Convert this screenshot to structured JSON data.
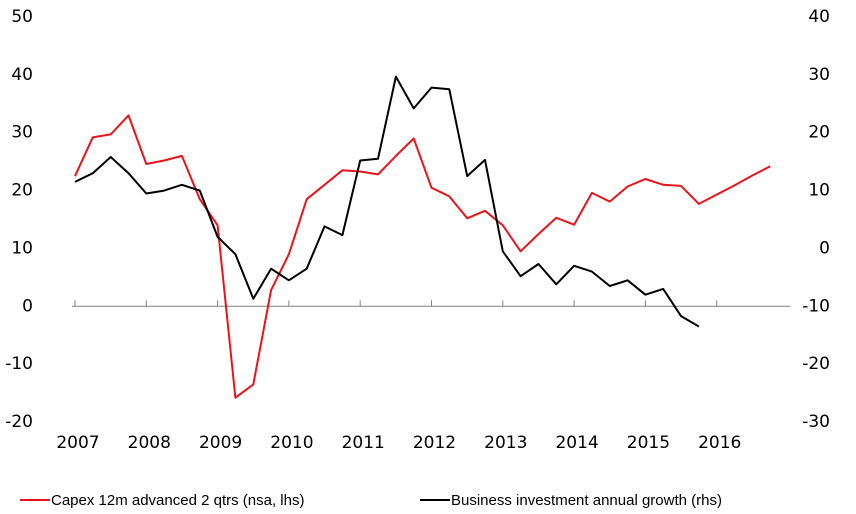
{
  "chart_data": {
    "type": "line",
    "x": [
      2007,
      2007.25,
      2007.5,
      2007.75,
      2008,
      2008.25,
      2008.5,
      2008.75,
      2009,
      2009.25,
      2009.5,
      2009.75,
      2010,
      2010.25,
      2010.5,
      2010.75,
      2011,
      2011.25,
      2011.5,
      2011.75,
      2012,
      2012.25,
      2012.5,
      2012.75,
      2013,
      2013.25,
      2013.5,
      2013.75,
      2014,
      2014.25,
      2014.5,
      2014.75,
      2015,
      2015.25,
      2015.5,
      2015.75,
      2016,
      2016.25,
      2016.5,
      2016.75
    ],
    "series": [
      {
        "name": "Capex 12m advanced 2 qtrs (nsa, lhs)",
        "color": "#e8141b",
        "axis": "y",
        "values": [
          22.5,
          29.2,
          29.7,
          33,
          24.6,
          25.2,
          26,
          18.5,
          14,
          -15.8,
          -13.5,
          2.8,
          9,
          18.5,
          21,
          23.5,
          23.3,
          22.8,
          26,
          29,
          20.5,
          19,
          15.2,
          16.5,
          14,
          9.5,
          12.5,
          15.3,
          14.1,
          19.6,
          18.1,
          20.7,
          22,
          21,
          20.8,
          17.7,
          19.3,
          20.9,
          22.6,
          24.2
        ]
      },
      {
        "name": "Business investment annual growth (rhs)",
        "color": "#000000",
        "axis": "y2",
        "values": [
          11.5,
          13,
          15.8,
          13,
          9.5,
          10,
          11,
          10,
          2,
          -1,
          -8.7,
          -3.5,
          -5.5,
          -3.5,
          3.8,
          2.3,
          15.2,
          15.5,
          29.7,
          24.2,
          27.8,
          27.5,
          12.5,
          15.3,
          -0.5,
          -4.8,
          -2.7,
          -6.2,
          -3,
          -4,
          -6.5,
          -5.5,
          -8,
          -7,
          -11.7,
          -13.5,
          null,
          null,
          null,
          null
        ]
      }
    ],
    "xlim": [
      2007,
      2017
    ],
    "xticks": [
      2007,
      2008,
      2009,
      2010,
      2011,
      2012,
      2013,
      2014,
      2015,
      2016
    ],
    "ylim": [
      -20,
      50
    ],
    "yticks": [
      -20,
      -10,
      0,
      10,
      20,
      30,
      40,
      50
    ],
    "y2lim": [
      -30,
      40
    ],
    "y2ticks": [
      -30,
      -20,
      -10,
      0,
      10,
      20,
      30,
      40
    ],
    "grid": false
  }
}
